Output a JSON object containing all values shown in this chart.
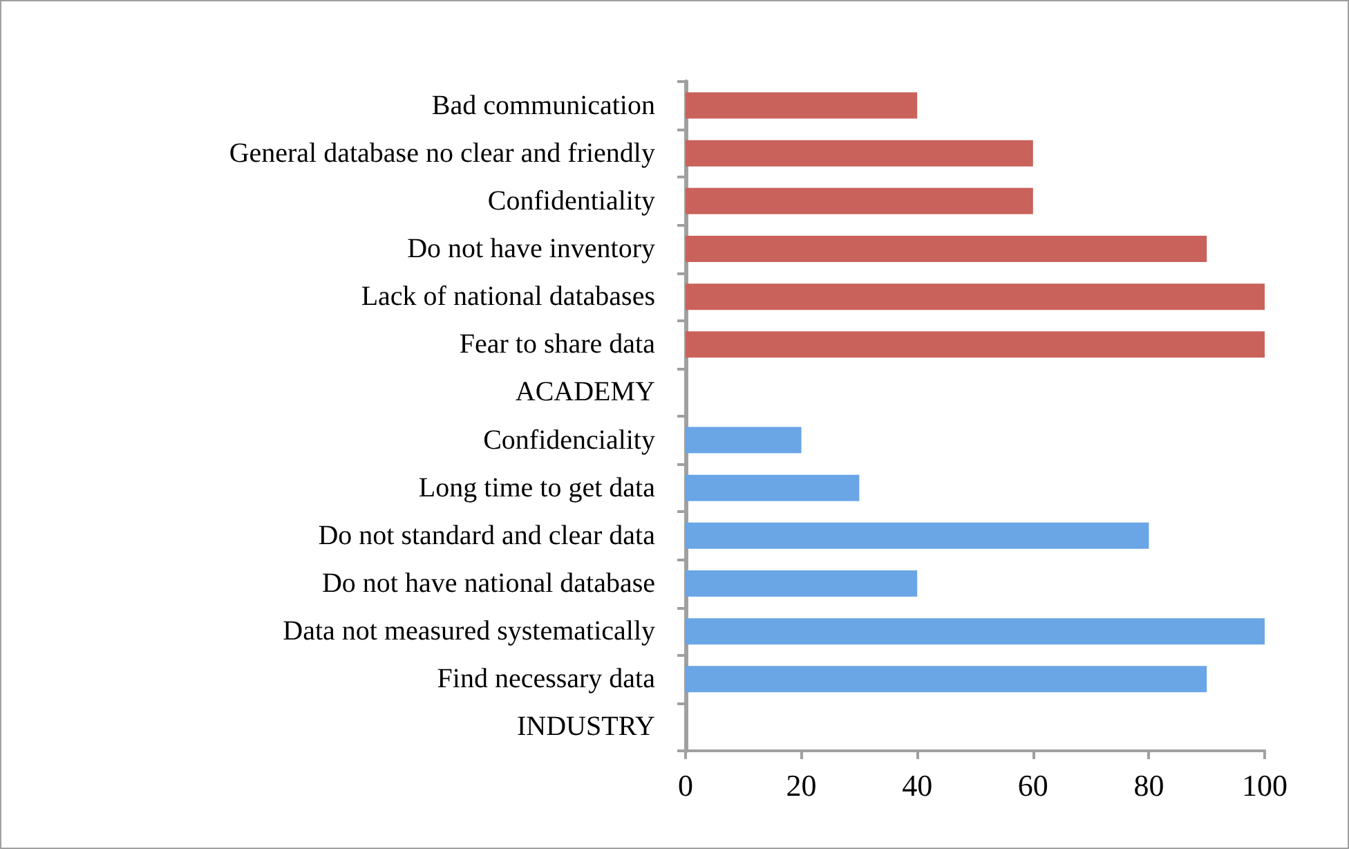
{
  "chart_data": {
    "type": "bar",
    "orientation": "horizontal",
    "categories": [
      "Bad communication",
      "General database no clear and friendly",
      "Confidentiality",
      "Do not have inventory",
      "Lack of national databases",
      "Fear to share data",
      "ACADEMY",
      "Confidenciality",
      "Long time to get data",
      "Do not standard and clear data",
      "Do not have national database",
      "Data not measured systematically",
      "Find necessary data",
      "INDUSTRY"
    ],
    "values": [
      40,
      60,
      60,
      90,
      100,
      100,
      null,
      20,
      30,
      80,
      40,
      100,
      90,
      null
    ],
    "colors": [
      "#c9625a",
      "#c9625a",
      "#c9625a",
      "#c9625a",
      "#c9625a",
      "#c9625a",
      null,
      "#6aa5e6",
      "#6aa5e6",
      "#6aa5e6",
      "#6aa5e6",
      "#6aa5e6",
      "#6aa5e6",
      null
    ],
    "xlim": [
      0,
      100
    ],
    "xticks": [
      0,
      20,
      40,
      60,
      80,
      100
    ],
    "grid": false
  }
}
